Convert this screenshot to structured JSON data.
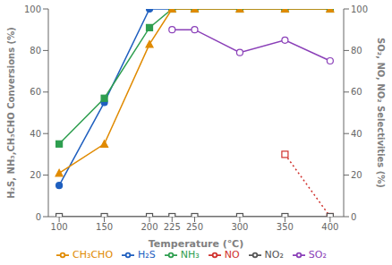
{
  "chart_data": {
    "type": "line",
    "xlabel": "Temperature (℃)",
    "ylabel": "H₂S, NH₃,CH₃CHO Conversions (%)",
    "y2label": "SO₂, NO, NO₂ Selectivities (%)",
    "x": [
      100,
      150,
      200,
      225,
      250,
      300,
      350,
      400
    ],
    "xlim": [
      88,
      415
    ],
    "xticks": [
      100,
      150,
      200,
      225,
      250,
      300,
      350,
      400
    ],
    "ylim": [
      0,
      100
    ],
    "yticks": [
      0,
      20,
      40,
      60,
      80,
      100
    ],
    "y2lim": [
      0,
      100
    ],
    "y2ticks": [
      0,
      20,
      40,
      60,
      80,
      100
    ],
    "grid": false,
    "legend": "bottom",
    "series": [
      {
        "name": "H₂S",
        "color": "#1f5fbf",
        "marker": "filled circle",
        "line_style": "solid",
        "values": [
          15,
          55,
          100,
          100,
          100,
          100,
          100,
          100
        ]
      },
      {
        "name": "NH₃",
        "color": "#2e9e4f",
        "marker": "filled square",
        "line_style": "solid",
        "values": [
          35,
          57,
          91,
          100,
          100,
          100,
          100,
          100
        ]
      },
      {
        "name": "CH₃CHO",
        "color": "#e08a00",
        "marker": "filled triangle",
        "line_style": "solid",
        "values": [
          21,
          35,
          83,
          100,
          100,
          100,
          100,
          100
        ]
      },
      {
        "name": "SO₂",
        "color": "#8a3fb8",
        "marker": "open circle",
        "line_style": "solid",
        "axis": "y2",
        "values": [
          null,
          null,
          null,
          90,
          90,
          79,
          85,
          75
        ]
      },
      {
        "name": "NO",
        "color": "#d0312d",
        "marker": "open square",
        "line_style": "dotted",
        "axis": "y2",
        "values": [
          null,
          null,
          null,
          null,
          null,
          null,
          30,
          0
        ]
      },
      {
        "name": "NO₂",
        "color": "#555555",
        "marker": "open square",
        "line_style": "solid",
        "axis": "y2",
        "values": [
          0,
          0,
          0,
          0,
          0,
          0,
          0,
          0
        ]
      }
    ]
  }
}
